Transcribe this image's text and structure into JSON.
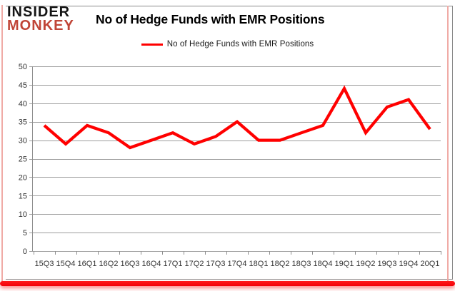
{
  "brand": {
    "name_line1": "INSIDER",
    "name_line2": "MONKEY"
  },
  "title": "No of Hedge Funds with EMR Positions",
  "legend": {
    "label": "No of Hedge Funds with EMR Positions"
  },
  "chart_data": {
    "type": "line",
    "title": "No of Hedge Funds with EMR Positions",
    "categories": [
      "15Q3",
      "15Q4",
      "16Q1",
      "16Q2",
      "16Q3",
      "16Q4",
      "17Q1",
      "17Q2",
      "17Q3",
      "17Q4",
      "18Q1",
      "18Q2",
      "18Q3",
      "18Q4",
      "19Q1",
      "19Q2",
      "19Q3",
      "19Q4",
      "20Q1"
    ],
    "series": [
      {
        "name": "No of Hedge Funds with EMR Positions",
        "color": "#ff0000",
        "values": [
          34,
          29,
          34,
          32,
          28,
          30,
          32,
          29,
          31,
          35,
          30,
          30,
          32,
          34,
          44,
          32,
          39,
          41,
          33
        ]
      }
    ],
    "xlabel": "",
    "ylabel": "",
    "ylim": [
      0,
      50
    ],
    "ytick_step": 5,
    "yticks": [
      0,
      5,
      10,
      15,
      20,
      25,
      30,
      35,
      40,
      45,
      50
    ],
    "grid": true,
    "legend_position": "top-center"
  },
  "colors": {
    "series_red": "#ff0000",
    "brand_red": "#c04537",
    "grid_gray": "#9d9d9d",
    "axis_line_gray": "#8f8f8f",
    "axis_text": "#333333",
    "frame_pink": "#f0aba6",
    "frame_gray": "#8a8a8a",
    "bottom_bar_red": "#f90710",
    "background": "#ffffff"
  }
}
